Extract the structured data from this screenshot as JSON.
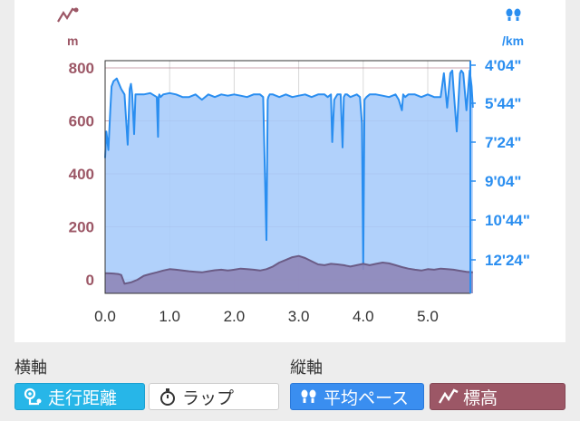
{
  "chart_data": {
    "type": "area",
    "xlabel": "",
    "x_ticks": [
      "0.0",
      "1.0",
      "2.0",
      "3.0",
      "4.0",
      "5.0"
    ],
    "x_range": [
      0,
      5.7
    ],
    "left_axis": {
      "unit": "m",
      "ticks": [
        "0",
        "200",
        "400",
        "600",
        "800"
      ],
      "range": [
        -50,
        820
      ],
      "color": "#9c5766"
    },
    "right_axis": {
      "unit": "/km",
      "ticks": [
        "4'04\"",
        "5'44\"",
        "7'24\"",
        "9'04\"",
        "10'44\"",
        "12'24\""
      ],
      "color": "#2a8ef0"
    },
    "grid": true,
    "series": [
      {
        "key": "pace",
        "color": "#2a8ef0",
        "fill": "#a9ccfb",
        "x": [
          0.0,
          0.02,
          0.05,
          0.08,
          0.1,
          0.13,
          0.18,
          0.25,
          0.3,
          0.35,
          0.38,
          0.4,
          0.42,
          0.45,
          0.47,
          0.5,
          0.6,
          0.7,
          0.8,
          0.82,
          0.83,
          0.84,
          0.86,
          0.9,
          1.0,
          1.1,
          1.2,
          1.3,
          1.4,
          1.5,
          1.6,
          1.7,
          1.8,
          1.9,
          2.0,
          2.1,
          2.2,
          2.3,
          2.4,
          2.45,
          2.5,
          2.52,
          2.53,
          2.55,
          2.6,
          2.7,
          2.8,
          2.9,
          3.0,
          3.1,
          3.2,
          3.3,
          3.4,
          3.45,
          3.5,
          3.52,
          3.55,
          3.6,
          3.65,
          3.68,
          3.7,
          3.72,
          3.75,
          3.8,
          3.9,
          3.95,
          3.98,
          4.0,
          4.02,
          4.05,
          4.1,
          4.2,
          4.3,
          4.4,
          4.5,
          4.55,
          4.6,
          4.62,
          4.65,
          4.7,
          4.8,
          4.9,
          5.0,
          5.1,
          5.2,
          5.25,
          5.3,
          5.35,
          5.38,
          5.4,
          5.45,
          5.5,
          5.52,
          5.55,
          5.6,
          5.65,
          5.68,
          5.7
        ],
        "values": [
          460,
          560,
          490,
          640,
          730,
          750,
          760,
          720,
          700,
          510,
          720,
          740,
          700,
          550,
          700,
          700,
          700,
          705,
          690,
          540,
          690,
          700,
          690,
          700,
          705,
          700,
          690,
          690,
          700,
          680,
          700,
          690,
          700,
          695,
          700,
          695,
          690,
          700,
          700,
          690,
          150,
          680,
          690,
          700,
          700,
          690,
          700,
          690,
          695,
          700,
          690,
          700,
          700,
          690,
          700,
          520,
          680,
          700,
          700,
          500,
          690,
          700,
          700,
          690,
          700,
          690,
          590,
          40,
          680,
          690,
          700,
          700,
          695,
          690,
          700,
          680,
          640,
          700,
          690,
          700,
          700,
          690,
          700,
          690,
          690,
          780,
          650,
          780,
          790,
          720,
          560,
          780,
          790,
          780,
          640,
          790,
          730,
          650
        ]
      },
      {
        "key": "elevation",
        "color": "#6b5c86",
        "fill": "#8f86b8",
        "x": [
          0.0,
          0.1,
          0.2,
          0.25,
          0.3,
          0.4,
          0.5,
          0.6,
          0.7,
          0.8,
          0.9,
          1.0,
          1.1,
          1.2,
          1.3,
          1.4,
          1.5,
          1.6,
          1.7,
          1.8,
          1.9,
          2.0,
          2.1,
          2.2,
          2.3,
          2.4,
          2.5,
          2.6,
          2.7,
          2.8,
          2.9,
          3.0,
          3.1,
          3.2,
          3.3,
          3.4,
          3.5,
          3.6,
          3.7,
          3.8,
          3.9,
          4.0,
          4.1,
          4.2,
          4.3,
          4.4,
          4.5,
          4.6,
          4.7,
          4.8,
          4.9,
          5.0,
          5.1,
          5.2,
          5.3,
          5.4,
          5.5,
          5.6,
          5.7
        ],
        "values": [
          25,
          24,
          22,
          18,
          -15,
          -10,
          0,
          15,
          22,
          28,
          35,
          40,
          38,
          35,
          32,
          30,
          28,
          32,
          36,
          38,
          35,
          38,
          42,
          40,
          38,
          35,
          40,
          50,
          65,
          75,
          85,
          90,
          82,
          70,
          58,
          55,
          60,
          58,
          55,
          50,
          55,
          60,
          55,
          60,
          65,
          62,
          55,
          48,
          42,
          38,
          35,
          40,
          38,
          42,
          40,
          38,
          34,
          30,
          28
        ]
      }
    ]
  },
  "header": {
    "left_icon": "elevation-icon",
    "right_icon": "pace-icon"
  },
  "controls": {
    "horizontal_axis": {
      "label": "横軸",
      "options": [
        {
          "label": "走行距離",
          "icon": "distance-icon",
          "selected": true
        },
        {
          "label": "ラップ",
          "icon": "stopwatch-icon",
          "selected": false
        }
      ]
    },
    "vertical_axis": {
      "label": "縦軸",
      "options": [
        {
          "label": "平均ペース",
          "icon": "pace-icon",
          "selected": true
        },
        {
          "label": "標高",
          "icon": "elevation-icon",
          "selected": true
        }
      ]
    }
  }
}
